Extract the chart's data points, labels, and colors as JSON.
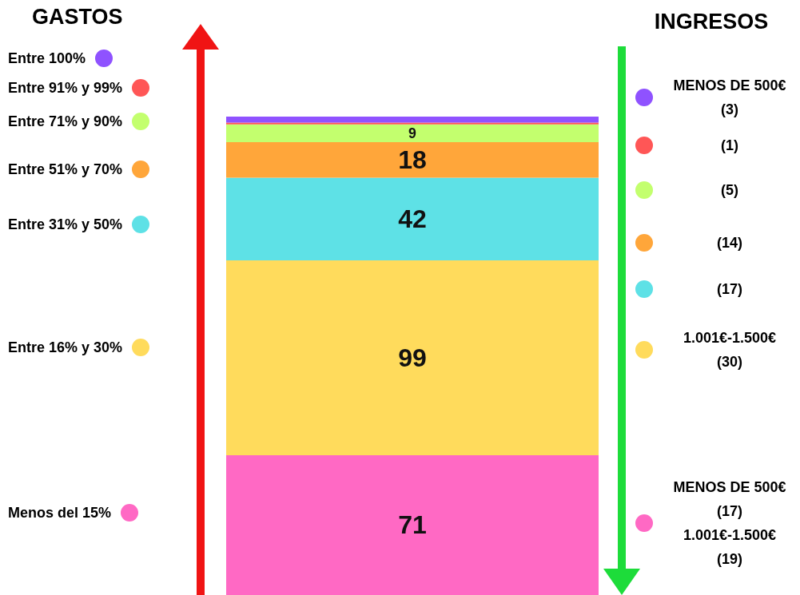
{
  "chart_data": {
    "type": "bar",
    "stacked": true,
    "categories": [
      null
    ],
    "legend": "left",
    "legend_title": "GASTOS",
    "series": [
      {
        "name": "Menos del 15%",
        "color": "#ff69c4",
        "values": [
          71
        ],
        "value_labels": [
          "71"
        ]
      },
      {
        "name": "Entre 16% y 30%",
        "color": "#ffdb5c",
        "values": [
          99
        ],
        "value_labels": [
          "99"
        ]
      },
      {
        "name": "Entre 31% y 50%",
        "color": "#5ee1e6",
        "values": [
          42
        ],
        "value_labels": [
          "42"
        ]
      },
      {
        "name": "Entre 51% y 70%",
        "color": "#ffa63a",
        "values": [
          18
        ],
        "value_labels": [
          "18"
        ]
      },
      {
        "name": "Entre 71% y 90%",
        "color": "#c3ff6e",
        "values": [
          9
        ],
        "value_labels": [
          "9"
        ]
      },
      {
        "name": "Entre 91% y 99%",
        "color": "#ff5656",
        "values": [
          1
        ],
        "value_labels": [
          null
        ]
      },
      {
        "name": "Entre 100%",
        "color": "#8f52ff",
        "values": [
          3
        ],
        "value_labels": [
          null
        ]
      }
    ],
    "annotations": [
      "INGRESOS",
      "MENOS DE 500€\n(3)",
      "(1)",
      "(5)",
      "(14)",
      "(17)",
      "1.001€-1.500€\n(30)",
      "MENOS DE 500€\n(17)\n1.001€-1.500€\n(19)"
    ]
  }
}
